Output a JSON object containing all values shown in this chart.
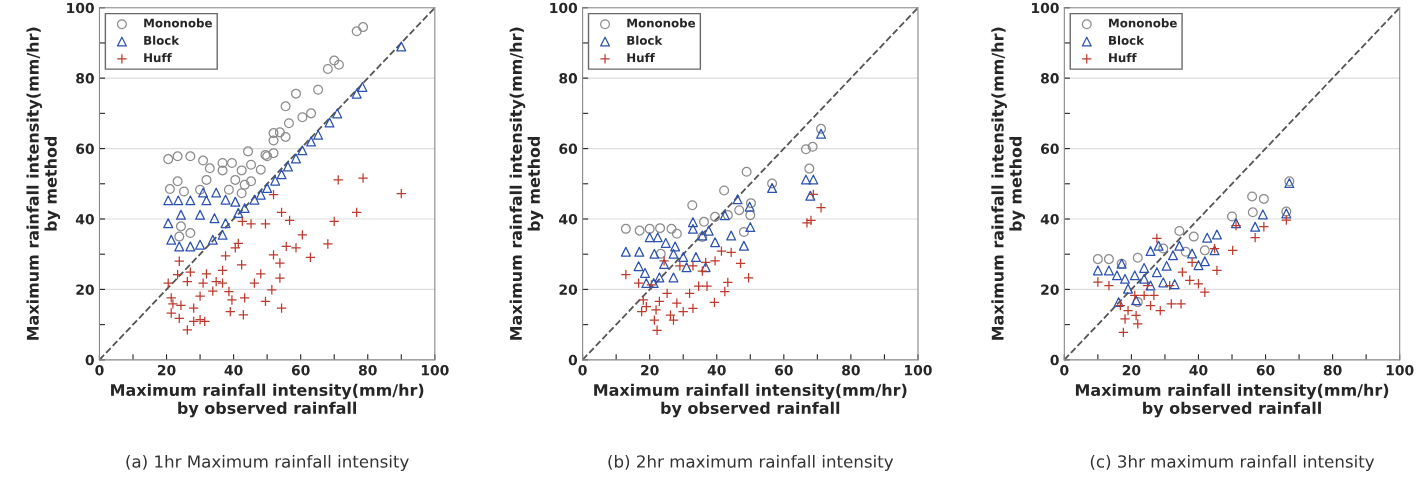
{
  "chart_data": [
    {
      "type": "scatter",
      "xlabel": "Maximum rainfall intensity(mm/hr)\nby observed rainfall",
      "ylabel": "Maximum rainfall intensity(mm/hr)\nby method",
      "annotations": [
        "(a) 1hr Maximum rainfall intensity"
      ],
      "xlim": [
        0,
        100
      ],
      "ylim": [
        0,
        100
      ],
      "xticks": [
        0,
        {
          "value": 10,
          "label": null
        },
        20,
        {
          "value": 30,
          "label": null
        },
        40,
        {
          "value": 50,
          "label": null
        },
        60,
        {
          "value": 70,
          "label": null
        },
        80,
        {
          "value": 90,
          "label": null
        },
        100
      ],
      "yticks": [
        0,
        {
          "value": 10,
          "label": null
        },
        20,
        {
          "value": 30,
          "label": null
        },
        40,
        {
          "value": 50,
          "label": null
        },
        60,
        {
          "value": 70,
          "label": null
        },
        80,
        {
          "value": 90,
          "label": null
        },
        100
      ],
      "grid": "y",
      "legend": "top left",
      "series": [
        {
          "name": "Mononobe",
          "color": "#8c8c8c",
          "marker": "circle",
          "x": [
            76.7,
            78.6,
            68.1,
            70,
            71.4,
            58.6,
            65.2,
            55.5,
            60.5,
            63.1,
            56.5,
            51.9,
            53.8,
            55.5,
            51.9,
            44.3,
            49.5,
            51.9,
            20.5,
            23.3,
            27.1,
            30.9,
            36.7,
            39.5,
            45.2,
            48.1,
            36.7,
            42.4,
            32.9,
            31.9,
            40.5,
            45.2,
            23.3,
            21,
            25.2,
            30,
            38.6,
            42.4,
            24.3,
            27.1,
            23.8,
            50,
            43.3
          ],
          "values": [
            93.3,
            94.5,
            82.6,
            85,
            83.8,
            75.6,
            76.7,
            72,
            68.9,
            70,
            67.2,
            64.4,
            64.6,
            63.3,
            62.3,
            59.2,
            58.2,
            58.7,
            57,
            57.8,
            57.8,
            56.6,
            55.9,
            55.9,
            55.4,
            54,
            53.8,
            53.8,
            54.4,
            51.1,
            51.1,
            50.7,
            50.7,
            48.5,
            47.8,
            48.3,
            48.3,
            47.3,
            37.9,
            36,
            35,
            57.8,
            49.7
          ]
        },
        {
          "name": "Block",
          "color": "#2a52b0",
          "marker": "triangle",
          "x": [
            90,
            78.4,
            76.7,
            70.9,
            68.6,
            65.2,
            63.1,
            60.5,
            58.6,
            56.2,
            54.3,
            52.4,
            50,
            48.1,
            46.2,
            43.3,
            41.4,
            20.5,
            23.5,
            27.1,
            30.9,
            34.8,
            37.6,
            20.5,
            24.3,
            30,
            34.3,
            37.6,
            21.4,
            23.8,
            27.1,
            30,
            33.8,
            36.7,
            31.9,
            40.5
          ],
          "values": [
            89,
            77.5,
            75.6,
            70,
            67.4,
            63.9,
            62,
            59.5,
            57.2,
            54.9,
            52.7,
            50.9,
            48.8,
            46.9,
            45.5,
            43.1,
            41.7,
            45.3,
            45.3,
            45.3,
            47.5,
            47.5,
            45.5,
            38.8,
            41.2,
            41.2,
            40.2,
            38.8,
            34.1,
            32.2,
            32.2,
            32.7,
            34.1,
            35.5,
            45.3,
            44.9
          ]
        },
        {
          "name": "Huff",
          "color": "#c0392b",
          "marker": "cross",
          "x": [
            90,
            71.2,
            78.6,
            76.7,
            70,
            60.5,
            68.1,
            55.7,
            58.6,
            62.9,
            51.9,
            54.3,
            56.7,
            49.5,
            45.2,
            42.6,
            41.4,
            40.5,
            37.6,
            42.4,
            51.9,
            53.8,
            48.1,
            53.8,
            51.4,
            46.2,
            43.3,
            39.5,
            49.5,
            54.3,
            42.9,
            39,
            36.7,
            31.9,
            27.1,
            23.8,
            20.5,
            23.3,
            26.2,
            30.9,
            34.8,
            33.8,
            30,
            21.4,
            21.9,
            24.3,
            28.1,
            21.4,
            23.8,
            28.1,
            30,
            31.4,
            26.2,
            36.7,
            38.6
          ],
          "values": [
            47.2,
            51.1,
            51.6,
            41.9,
            39.3,
            35.5,
            32.9,
            32.2,
            31.8,
            29.1,
            46.9,
            41.9,
            39.6,
            38.6,
            38.6,
            39.3,
            33.1,
            31.8,
            29.5,
            27,
            29.8,
            27.5,
            24.4,
            23.2,
            19.9,
            21.8,
            17.6,
            17,
            16.6,
            14.7,
            12.8,
            13.7,
            25.4,
            24.4,
            24.9,
            28,
            21.8,
            24.2,
            22.2,
            21.8,
            22.2,
            19.5,
            18.1,
            17.6,
            15.9,
            15.5,
            14.7,
            13.3,
            11.8,
            10.9,
            11.4,
            10.9,
            8.5,
            21.8,
            19.4
          ]
        },
        {
          "type": "line",
          "color": "#555555",
          "line_style": "dashed",
          "x": [
            0,
            100
          ],
          "values": [
            0,
            100
          ]
        }
      ]
    },
    {
      "type": "scatter",
      "xlabel": "Maximum rainfall intensity(mm/hr)\nby observed rainfall",
      "ylabel": "Maximum rainfall intensity(mm/hr)\nby method",
      "annotations": [
        "(b) 2hr maximum rainfall intensity"
      ],
      "xlim": [
        0,
        100
      ],
      "ylim": [
        0,
        100
      ],
      "xticks": [
        0,
        {
          "value": 10,
          "label": null
        },
        20,
        {
          "value": 30,
          "label": null
        },
        40,
        {
          "value": 50,
          "label": null
        },
        60,
        {
          "value": 70,
          "label": null
        },
        80,
        {
          "value": 90,
          "label": null
        },
        100
      ],
      "yticks": [
        0,
        {
          "value": 10,
          "label": null
        },
        20,
        {
          "value": 30,
          "label": null
        },
        40,
        {
          "value": 50,
          "label": null
        },
        60,
        {
          "value": 70,
          "label": null
        },
        80,
        {
          "value": 90,
          "label": null
        },
        100
      ],
      "grid": "y",
      "legend": "top left",
      "series": [
        {
          "name": "Mononobe",
          "color": "#8c8c8c",
          "marker": "circle",
          "x": [
            71.1,
            66.6,
            68.6,
            67.6,
            56.5,
            48.9,
            42.2,
            32.7,
            12.9,
            17,
            20,
            23.1,
            26.5,
            28.1,
            36.2,
            39.5,
            43.3,
            46.7,
            50,
            50.2,
            48.1,
            23.3,
            35.7
          ],
          "values": [
            65.6,
            59.8,
            60.5,
            54.3,
            50.1,
            53.4,
            48.1,
            43.9,
            37.2,
            36.7,
            37.2,
            37.4,
            37.2,
            35.8,
            39.2,
            40.6,
            41.1,
            42.5,
            41.1,
            44.5,
            36.3,
            30.1,
            34.9
          ]
        },
        {
          "name": "Block",
          "color": "#2a52b0",
          "marker": "triangle",
          "x": [
            71.1,
            66.6,
            68.8,
            67.9,
            56.5,
            49.8,
            50,
            46.2,
            42.4,
            12.9,
            16.9,
            20,
            22.4,
            32.9,
            32.9,
            35.7,
            37.6,
            39.5,
            44.3,
            48.1,
            16.7,
            18.6,
            19,
            21.4,
            24.3,
            27.1,
            27.1,
            30,
            31,
            33.8,
            36.7,
            22.9,
            24.8,
            27.6,
            21.2
          ],
          "values": [
            64.2,
            51.2,
            51.2,
            46.6,
            48.8,
            43.5,
            37.7,
            45.6,
            41.1,
            30.7,
            30.7,
            34.8,
            34.8,
            39.1,
            37.2,
            35.3,
            36.7,
            33.4,
            35.3,
            32.4,
            26.6,
            24.7,
            21.8,
            30.1,
            27.2,
            30.1,
            23.4,
            29.2,
            26.3,
            29.2,
            26.3,
            23.4,
            33.2,
            32.2,
            21.8
          ]
        },
        {
          "name": "Huff",
          "color": "#c0392b",
          "marker": "cross",
          "x": [
            71.1,
            68.8,
            66.9,
            68.1,
            41.4,
            44.3,
            47.1,
            49.5,
            42.4,
            43.3,
            39.5,
            35.7,
            34.6,
            37.1,
            39.3,
            12.9,
            16.7,
            18.1,
            17.6,
            21.4,
            22.2,
            19,
            21.9,
            22.9,
            26.2,
            27.1,
            28.1,
            30,
            31.9,
            32.9,
            25.2,
            29,
            32.9,
            36.7,
            24.3,
            20.5
          ],
          "values": [
            43.2,
            47,
            38.9,
            39.6,
            30.9,
            30.5,
            27.4,
            23.3,
            19.4,
            22,
            28.1,
            25.2,
            20.9,
            20.9,
            16.3,
            24.2,
            21.8,
            17,
            13.7,
            11.3,
            8.4,
            15.1,
            14.2,
            16.6,
            12.7,
            11.3,
            16.1,
            13.7,
            18.9,
            14.6,
            18.9,
            26.7,
            26.7,
            27.7,
            28.1,
            21.3
          ]
        },
        {
          "type": "line",
          "color": "#555555",
          "line_style": "dashed",
          "x": [
            0,
            100
          ],
          "values": [
            0,
            100
          ]
        }
      ]
    },
    {
      "type": "scatter",
      "xlabel": "Maximum rainfall intensity(mm/hr)\nby observed rainfall",
      "ylabel": "Maximum rainfall intensity(mm/hr)\nby method",
      "annotations": [
        "(c) 3hr maximum rainfall intensity"
      ],
      "xlim": [
        0,
        100
      ],
      "ylim": [
        0,
        100
      ],
      "xticks": [
        0,
        {
          "value": 10,
          "label": null
        },
        20,
        {
          "value": 30,
          "label": null
        },
        40,
        {
          "value": 50,
          "label": null
        },
        60,
        {
          "value": 70,
          "label": null
        },
        80,
        {
          "value": 90,
          "label": null
        },
        100
      ],
      "yticks": [
        0,
        {
          "value": 10,
          "label": null
        },
        20,
        {
          "value": 30,
          "label": null
        },
        40,
        {
          "value": 50,
          "label": null
        },
        60,
        {
          "value": 70,
          "label": null
        },
        80,
        {
          "value": 90,
          "label": null
        },
        100
      ],
      "grid": "y",
      "legend": "top left",
      "series": [
        {
          "name": "Mononobe",
          "color": "#8c8c8c",
          "marker": "circle",
          "x": [
            67.1,
            56,
            59.5,
            50,
            34.3,
            38.6,
            41.9,
            10,
            13.3,
            21.9,
            29.5,
            36.2,
            56.2,
            66.2,
            21.9,
            17.1
          ],
          "values": [
            50.7,
            46.4,
            45.7,
            40.7,
            36.6,
            35,
            31.1,
            28.6,
            28.6,
            29,
            31.6,
            30.7,
            41.9,
            42.1,
            16.4,
            27.3
          ]
        },
        {
          "name": "Block",
          "color": "#2a52b0",
          "marker": "triangle",
          "x": [
            67.1,
            66.2,
            59.2,
            56.9,
            51.2,
            45.5,
            42.6,
            10,
            13.3,
            15.7,
            17.1,
            25.7,
            28.1,
            32.4,
            34.3,
            38.1,
            40,
            41.9,
            44.8,
            18.1,
            19,
            16.2,
            21.4,
            23.8,
            25.7,
            27.6,
            30.5,
            21,
            29.5,
            32.9,
            23.8
          ],
          "values": [
            50.2,
            41.6,
            41.3,
            37.8,
            38.8,
            35.6,
            34.7,
            25.4,
            25.4,
            24,
            27.3,
            30.9,
            32.4,
            29.7,
            32.4,
            30.2,
            26.9,
            28,
            31.1,
            23,
            20.2,
            16.4,
            16.9,
            23,
            21.1,
            24.9,
            26.7,
            24,
            22,
            21.5,
            26.1
          ]
        },
        {
          "name": "Huff",
          "color": "#c0392b",
          "marker": "cross",
          "x": [
            66.2,
            59.5,
            56.9,
            51.2,
            50.2,
            45.5,
            44.8,
            41.9,
            40,
            37.4,
            34.8,
            31.9,
            27.6,
            28.6,
            25.7,
            10,
            13.3,
            17.6,
            18.1,
            19,
            21.4,
            21.9,
            24.8,
            26.7,
            31.4,
            35.2,
            38.1,
            21,
            16.7,
            23.8
          ],
          "values": [
            39.7,
            37.8,
            34.7,
            38.1,
            31.1,
            25.4,
            31.6,
            19.2,
            21.6,
            22.6,
            15.9,
            15.9,
            34.5,
            14,
            15.4,
            22.1,
            21.1,
            7.8,
            11.6,
            14,
            12.6,
            10.2,
            21.1,
            18.3,
            21.1,
            24.9,
            27.7,
            18.3,
            15.4,
            18.3
          ]
        },
        {
          "type": "line",
          "color": "#555555",
          "line_style": "dashed",
          "x": [
            0,
            100
          ],
          "values": [
            0,
            100
          ]
        }
      ]
    }
  ]
}
